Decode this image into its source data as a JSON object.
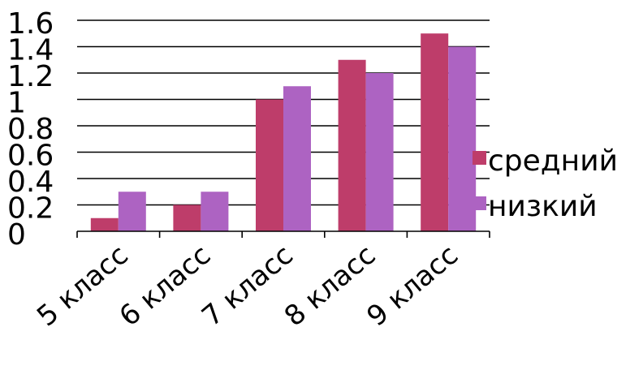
{
  "chart_data": {
    "type": "bar",
    "title": "",
    "xlabel": "",
    "ylabel": "",
    "categories": [
      "5 класс",
      "6 класс",
      "7 класс",
      "8 класс",
      "9 класс"
    ],
    "series": [
      {
        "name": "средний",
        "color": "#be3d6a",
        "values": [
          0.1,
          0.2,
          1.0,
          1.3,
          1.5
        ]
      },
      {
        "name": "низкий",
        "color": "#ad63c2",
        "values": [
          0.3,
          0.3,
          1.1,
          1.2,
          1.4
        ]
      }
    ],
    "ylim": [
      0,
      1.6
    ],
    "yticks": [
      "0",
      "0.2",
      "0.4",
      "0.6",
      "0.8",
      "1",
      "1.2",
      "1.4",
      "1.6"
    ],
    "grid": true,
    "legend": "right"
  }
}
